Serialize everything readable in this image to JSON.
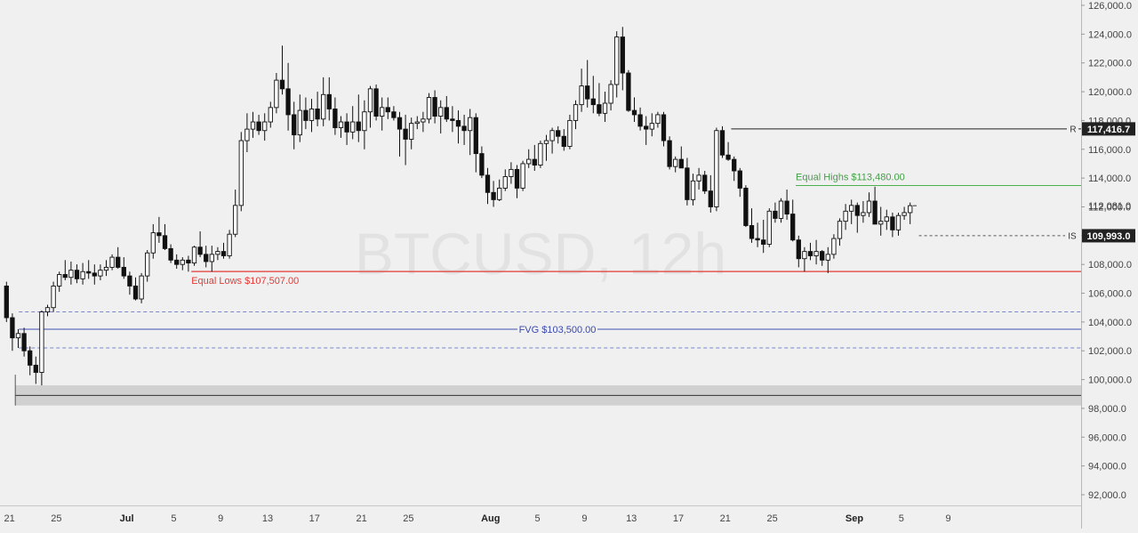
{
  "colors": {
    "background": "#f0f0f0",
    "candle": "#111111",
    "grid_line": "#c8c8c8",
    "resistance_line": "#222222",
    "equal_highs": "#4caf50",
    "equal_lows": "#e53935",
    "fvg": "#3f51b5",
    "fvg_bounds": "#7986cb",
    "support_zone": "#d0d0d0",
    "watermark": "#e0e0e0"
  },
  "chart_data": {
    "type": "candlestick",
    "watermark": "BTCUSD, 12h",
    "ylim": [
      91000,
      126300
    ],
    "y_ticks": [
      "92,000.0",
      "94,000.0",
      "96,000.0",
      "98,000.0",
      "100,000.0",
      "102,000.0",
      "104,000.0",
      "106,000.0",
      "108,000.0",
      "110,000.0",
      "112,000.0",
      "114,000.0",
      "116,000.0",
      "118,000.0",
      "120,000.0",
      "122,000.0",
      "124,000.0",
      "126,000.0"
    ],
    "y_tick_values": [
      92000,
      94000,
      96000,
      98000,
      100000,
      102000,
      104000,
      106000,
      108000,
      110000,
      112000,
      114000,
      116000,
      118000,
      120000,
      122000,
      124000,
      126000
    ],
    "x_start": "2025-06-20 12:00",
    "x_ticks": [
      {
        "label": "21",
        "date": "2025-06-21"
      },
      {
        "label": "25",
        "date": "2025-06-25"
      },
      {
        "label": "Jul",
        "date": "2025-07-01",
        "bold": true
      },
      {
        "label": "5",
        "date": "2025-07-05"
      },
      {
        "label": "9",
        "date": "2025-07-09"
      },
      {
        "label": "13",
        "date": "2025-07-13"
      },
      {
        "label": "17",
        "date": "2025-07-17"
      },
      {
        "label": "21",
        "date": "2025-07-21"
      },
      {
        "label": "25",
        "date": "2025-07-25"
      },
      {
        "label": "Aug",
        "date": "2025-08-01",
        "bold": true
      },
      {
        "label": "5",
        "date": "2025-08-05"
      },
      {
        "label": "9",
        "date": "2025-08-09"
      },
      {
        "label": "13",
        "date": "2025-08-13"
      },
      {
        "label": "17",
        "date": "2025-08-17"
      },
      {
        "label": "21",
        "date": "2025-08-21"
      },
      {
        "label": "25",
        "date": "2025-08-25"
      },
      {
        "label": "Sep",
        "date": "2025-09-01",
        "bold": true
      },
      {
        "label": "5",
        "date": "2025-09-05"
      },
      {
        "label": "9",
        "date": "2025-09-09"
      }
    ],
    "levels": {
      "resistance": {
        "value": 117416.7,
        "price_label": "117,416.7",
        "tag": "R",
        "from": "2025-08-21 12:00"
      },
      "equal_highs": {
        "value": 113480,
        "label": "Equal Highs $113,480.00",
        "from": "2025-08-27 00:00"
      },
      "equal_lows": {
        "value": 107507,
        "label": "Equal Lows $107,507.00",
        "from": "2025-07-06 12:00"
      },
      "fvg": {
        "value": 103500,
        "label": "FVG $103,500.00",
        "upper": 104700,
        "lower": 102200,
        "from": "2025-06-21 12:00"
      },
      "support_zone": {
        "top": 99600,
        "mid": 98900,
        "bottom": 98200,
        "from": "2025-06-21 12:00"
      },
      "is": {
        "value": 109993,
        "price_label": "109,993.0",
        "tag": "IS",
        "from": "2025-09-06 12:00"
      },
      "last_price": {
        "value": 112081,
        "price_label": "112,081.0"
      }
    },
    "ohlc": [
      [
        106500,
        106800,
        104000,
        104300
      ],
      [
        104300,
        104600,
        102000,
        102900
      ],
      [
        102900,
        103500,
        102200,
        103200
      ],
      [
        103200,
        103600,
        101600,
        102000
      ],
      [
        102000,
        102300,
        100300,
        101000
      ],
      [
        101000,
        101600,
        99700,
        100500
      ],
      [
        100500,
        104800,
        99600,
        104700
      ],
      [
        104700,
        105200,
        104400,
        105000
      ],
      [
        105000,
        106800,
        104700,
        106500
      ],
      [
        106500,
        107500,
        106100,
        107300
      ],
      [
        107300,
        108300,
        106900,
        107100
      ],
      [
        107100,
        108200,
        106600,
        107600
      ],
      [
        107600,
        108000,
        106700,
        107000
      ],
      [
        107000,
        108100,
        106600,
        107500
      ],
      [
        107500,
        108300,
        107000,
        107400
      ],
      [
        107400,
        108000,
        106600,
        107200
      ],
      [
        107200,
        108000,
        106900,
        107600
      ],
      [
        107600,
        108300,
        107200,
        107800
      ],
      [
        107800,
        108700,
        107600,
        108500
      ],
      [
        108500,
        109200,
        107700,
        107800
      ],
      [
        107800,
        108500,
        107000,
        107200
      ],
      [
        107200,
        107500,
        105900,
        106500
      ],
      [
        106500,
        107100,
        105500,
        105600
      ],
      [
        105600,
        107400,
        105300,
        107200
      ],
      [
        107200,
        109000,
        106800,
        108800
      ],
      [
        108800,
        110800,
        108400,
        110200
      ],
      [
        110200,
        111300,
        109500,
        110000
      ],
      [
        110000,
        110800,
        109000,
        109100
      ],
      [
        109100,
        109400,
        108100,
        108300
      ],
      [
        108300,
        108700,
        107700,
        108000
      ],
      [
        108000,
        108500,
        107600,
        108300
      ],
      [
        108300,
        108600,
        107500,
        108100
      ],
      [
        108100,
        109300,
        107900,
        109200
      ],
      [
        109200,
        110300,
        108500,
        108700
      ],
      [
        108700,
        109300,
        107800,
        108200
      ],
      [
        108200,
        109300,
        107500,
        108700
      ],
      [
        108700,
        109200,
        108300,
        108900
      ],
      [
        108900,
        109500,
        108400,
        108600
      ],
      [
        108600,
        110400,
        108400,
        110100
      ],
      [
        110100,
        113200,
        109900,
        112100
      ],
      [
        112100,
        117200,
        111700,
        116600
      ],
      [
        116600,
        118500,
        115800,
        117400
      ],
      [
        117400,
        118600,
        116800,
        117900
      ],
      [
        117900,
        118400,
        117000,
        117300
      ],
      [
        117300,
        118500,
        116600,
        117900
      ],
      [
        117900,
        119300,
        117500,
        118900
      ],
      [
        118900,
        121300,
        118500,
        120800
      ],
      [
        120800,
        123200,
        119800,
        120200
      ],
      [
        120200,
        122000,
        117300,
        118400
      ],
      [
        118400,
        119300,
        116000,
        117000
      ],
      [
        117000,
        119800,
        116500,
        118700
      ],
      [
        118700,
        119600,
        117400,
        118000
      ],
      [
        118000,
        119500,
        117200,
        118800
      ],
      [
        118800,
        120000,
        117600,
        118100
      ],
      [
        118100,
        121000,
        117600,
        119800
      ],
      [
        119800,
        121000,
        118000,
        118800
      ],
      [
        118800,
        119600,
        117000,
        117500
      ],
      [
        117500,
        118300,
        116800,
        117900
      ],
      [
        117900,
        118500,
        116300,
        117200
      ],
      [
        117200,
        119000,
        116700,
        117900
      ],
      [
        117900,
        119800,
        116500,
        117300
      ],
      [
        117300,
        119400,
        116000,
        118600
      ],
      [
        118600,
        120400,
        117500,
        120200
      ],
      [
        120200,
        120500,
        118000,
        118300
      ],
      [
        118300,
        119600,
        117300,
        118900
      ],
      [
        118900,
        119600,
        118100,
        118600
      ],
      [
        118600,
        119000,
        118000,
        118200
      ],
      [
        118200,
        118600,
        115500,
        117400
      ],
      [
        117400,
        118400,
        114900,
        116700
      ],
      [
        116700,
        118200,
        116000,
        117800
      ],
      [
        117800,
        118300,
        117400,
        117900
      ],
      [
        117900,
        118600,
        117200,
        118100
      ],
      [
        118100,
        119900,
        117800,
        119600
      ],
      [
        119600,
        120100,
        117800,
        118300
      ],
      [
        118300,
        119400,
        117100,
        118900
      ],
      [
        118900,
        119700,
        117900,
        118100
      ],
      [
        118100,
        119000,
        117200,
        118000
      ],
      [
        118000,
        118700,
        116400,
        117600
      ],
      [
        117600,
        118400,
        116300,
        117300
      ],
      [
        117300,
        118800,
        115600,
        118200
      ],
      [
        118200,
        118500,
        114400,
        115700
      ],
      [
        115700,
        116200,
        114000,
        114200
      ],
      [
        114200,
        114700,
        112200,
        113000
      ],
      [
        113000,
        113800,
        112000,
        112500
      ],
      [
        112500,
        113900,
        112400,
        113300
      ],
      [
        113300,
        114600,
        113100,
        114100
      ],
      [
        114100,
        115100,
        113600,
        114600
      ],
      [
        114600,
        114900,
        112600,
        113300
      ],
      [
        113300,
        115200,
        113100,
        115000
      ],
      [
        115000,
        116000,
        114700,
        115300
      ],
      [
        115300,
        116300,
        114500,
        114900
      ],
      [
        114900,
        116600,
        114700,
        116400
      ],
      [
        116400,
        117000,
        115200,
        116600
      ],
      [
        116600,
        117500,
        115700,
        117300
      ],
      [
        117300,
        117600,
        116400,
        116900
      ],
      [
        116900,
        117400,
        115900,
        116200
      ],
      [
        116200,
        118400,
        116000,
        118000
      ],
      [
        118000,
        119400,
        117400,
        119100
      ],
      [
        119100,
        121600,
        118600,
        120400
      ],
      [
        120400,
        122200,
        118900,
        119500
      ],
      [
        119500,
        121100,
        118500,
        119100
      ],
      [
        119100,
        120600,
        118300,
        118500
      ],
      [
        118500,
        120000,
        117900,
        119200
      ],
      [
        119200,
        120800,
        118700,
        120500
      ],
      [
        120500,
        124200,
        119600,
        123800
      ],
      [
        123800,
        124500,
        120100,
        121300
      ],
      [
        121300,
        121500,
        118600,
        118700
      ],
      [
        118700,
        119600,
        117900,
        118400
      ],
      [
        118400,
        118900,
        117300,
        117600
      ],
      [
        117600,
        118300,
        116300,
        117400
      ],
      [
        117400,
        118500,
        116900,
        117800
      ],
      [
        117800,
        118600,
        117500,
        118400
      ],
      [
        118400,
        118600,
        116200,
        116600
      ],
      [
        116600,
        116900,
        114600,
        114800
      ],
      [
        114800,
        115500,
        114400,
        115300
      ],
      [
        115300,
        116200,
        114800,
        114700
      ],
      [
        114700,
        115400,
        112100,
        112500
      ],
      [
        112500,
        114300,
        112100,
        113800
      ],
      [
        113800,
        114700,
        113200,
        114200
      ],
      [
        114200,
        114500,
        112900,
        113100
      ],
      [
        113100,
        114200,
        111600,
        112000
      ],
      [
        112000,
        117500,
        111700,
        117300
      ],
      [
        117300,
        117600,
        115400,
        115600
      ],
      [
        115600,
        116500,
        115200,
        115300
      ],
      [
        115300,
        115500,
        113800,
        114500
      ],
      [
        114500,
        114700,
        112700,
        113300
      ],
      [
        113300,
        113500,
        110600,
        110700
      ],
      [
        110700,
        111900,
        109500,
        109800
      ],
      [
        109800,
        110900,
        109200,
        109700
      ],
      [
        109700,
        111100,
        108800,
        109400
      ],
      [
        109400,
        111900,
        109200,
        111700
      ],
      [
        111700,
        112300,
        110900,
        111200
      ],
      [
        111200,
        112600,
        110900,
        112400
      ],
      [
        112400,
        113200,
        111100,
        111500
      ],
      [
        111500,
        112500,
        109600,
        109700
      ],
      [
        109700,
        110000,
        107800,
        108400
      ],
      [
        108400,
        109200,
        107500,
        108900
      ],
      [
        108900,
        109500,
        108300,
        108600
      ],
      [
        108600,
        109700,
        108000,
        108900
      ],
      [
        108900,
        109000,
        107900,
        108300
      ],
      [
        108300,
        109200,
        107400,
        108700
      ],
      [
        108700,
        110100,
        108400,
        109800
      ],
      [
        109800,
        111200,
        109300,
        111000
      ],
      [
        111000,
        112200,
        110400,
        111700
      ],
      [
        111700,
        112500,
        110800,
        112100
      ],
      [
        112100,
        112300,
        110200,
        111400
      ],
      [
        111400,
        112400,
        110900,
        111600
      ],
      [
        111600,
        113000,
        111300,
        112400
      ],
      [
        112400,
        113400,
        110800,
        110800
      ],
      [
        110800,
        112000,
        110000,
        111000
      ],
      [
        111000,
        111800,
        110400,
        111300
      ],
      [
        111300,
        111600,
        109900,
        110400
      ],
      [
        110400,
        111600,
        110000,
        111400
      ],
      [
        111400,
        112000,
        111100,
        111600
      ],
      [
        111600,
        112300,
        110800,
        112081
      ]
    ]
  },
  "price_axis": {
    "resistance_label": "117,416.7",
    "is_label": "109,993.0"
  },
  "annotations": {
    "equal_highs_label": "Equal Highs $113,480.00",
    "equal_lows_label": "Equal Lows $107,507.00",
    "fvg_label": "FVG $103,500.00",
    "resistance_tag": "R",
    "is_tag": "IS"
  }
}
